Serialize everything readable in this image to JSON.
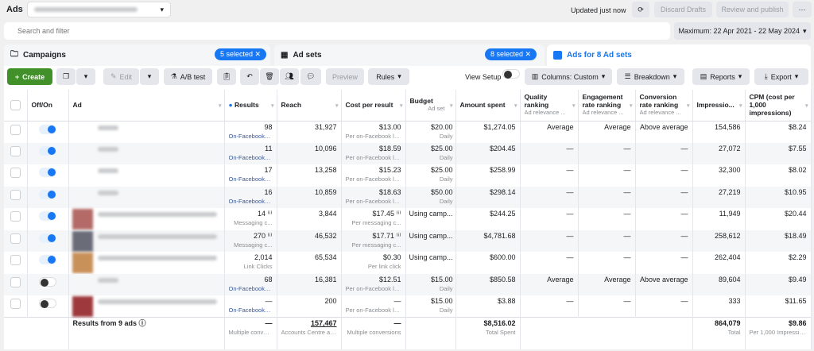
{
  "header": {
    "title": "Ads",
    "updated": "Updated just now",
    "discard": "Discard Drafts",
    "review": "Review and publish",
    "more": "···"
  },
  "search": {
    "placeholder": "Search and filter"
  },
  "date_range": "Maximum: 22 Apr 2021 - 22 May 2024",
  "tabs": [
    {
      "label": "Campaigns",
      "badge": "5 selected"
    },
    {
      "label": "Ad sets",
      "badge": "8 selected"
    },
    {
      "label": "Ads for 8 Ad sets"
    }
  ],
  "toolbar": {
    "create": "Create",
    "edit": "Edit",
    "ab_test": "A/B test",
    "preview": "Preview",
    "rules": "Rules",
    "view_setup": "View Setup",
    "columns": "Columns: Custom",
    "breakdown": "Breakdown",
    "reports": "Reports",
    "export": "Export"
  },
  "columns": [
    {
      "label": "Off/On"
    },
    {
      "label": "Ad"
    },
    {
      "label": "Results"
    },
    {
      "label": "Reach"
    },
    {
      "label": "Cost per result"
    },
    {
      "label": "Budget",
      "sub": "Ad set"
    },
    {
      "label": "Amount spent"
    },
    {
      "label": "Quality ranking",
      "sub": "Ad relevance ..."
    },
    {
      "label": "Engagement rate ranking",
      "sub": "Ad relevance ..."
    },
    {
      "label": "Conversion rate ranking",
      "sub": "Ad relevance ..."
    },
    {
      "label": "Impressio..."
    },
    {
      "label": "CPM (cost per 1,000 impressions)"
    }
  ],
  "rows": [
    {
      "on": true,
      "thumb": false,
      "results": "98",
      "results_sub": "On-Facebook l...",
      "link": true,
      "reach": "31,927",
      "cpr": "$13.00",
      "cpr_sub": "Per on-Facebook lea...",
      "budget": "$20.00",
      "budget_sub": "Daily",
      "spent": "$1,274.05",
      "q": "Average",
      "e": "Average",
      "c": "Above average",
      "imp": "154,586",
      "cpm": "$8.24"
    },
    {
      "on": true,
      "thumb": false,
      "results": "11",
      "results_sub": "On-Facebook l...",
      "link": true,
      "reach": "10,096",
      "cpr": "$18.59",
      "cpr_sub": "Per on-Facebook lea...",
      "budget": "$25.00",
      "budget_sub": "Daily",
      "spent": "$204.45",
      "q": "—",
      "e": "—",
      "c": "—",
      "imp": "27,072",
      "cpm": "$7.55"
    },
    {
      "on": true,
      "thumb": false,
      "results": "17",
      "results_sub": "On-Facebook l...",
      "link": true,
      "reach": "13,258",
      "cpr": "$15.23",
      "cpr_sub": "Per on-Facebook lea...",
      "budget": "$25.00",
      "budget_sub": "Daily",
      "spent": "$258.99",
      "q": "—",
      "e": "—",
      "c": "—",
      "imp": "32,300",
      "cpm": "$8.02"
    },
    {
      "on": true,
      "thumb": false,
      "results": "16",
      "results_sub": "On-Facebook l...",
      "link": true,
      "reach": "10,859",
      "cpr": "$18.63",
      "cpr_sub": "Per on-Facebook lea...",
      "budget": "$50.00",
      "budget_sub": "Daily",
      "spent": "$298.14",
      "q": "—",
      "e": "—",
      "c": "—",
      "imp": "27,219",
      "cpm": "$10.95"
    },
    {
      "on": true,
      "thumb": true,
      "thumb_color": "#b46a66",
      "results": "14 ⁽ⁱ⁾",
      "results_sub": "Messaging c...",
      "link": false,
      "reach": "3,844",
      "cpr": "$17.45 ⁽ⁱ⁾",
      "cpr_sub": "Per messaging c...",
      "budget": "Using camp...",
      "budget_sub": "",
      "spent": "$244.25",
      "q": "—",
      "e": "—",
      "c": "—",
      "imp": "11,949",
      "cpm": "$20.44"
    },
    {
      "on": true,
      "thumb": true,
      "thumb_color": "#6a6c78",
      "results": "270 ⁽ⁱ⁾",
      "results_sub": "Messaging c...",
      "link": false,
      "reach": "46,532",
      "cpr": "$17.71 ⁽ⁱ⁾",
      "cpr_sub": "Per messaging c...",
      "budget": "Using camp...",
      "budget_sub": "",
      "spent": "$4,781.68",
      "q": "—",
      "e": "—",
      "c": "—",
      "imp": "258,612",
      "cpm": "$18.49"
    },
    {
      "on": true,
      "thumb": true,
      "thumb_color": "#c9915a",
      "results": "2,014",
      "results_sub": "Link Clicks",
      "link": false,
      "reach": "65,534",
      "cpr": "$0.30",
      "cpr_sub": "Per link click",
      "budget": "Using camp...",
      "budget_sub": "",
      "spent": "$600.00",
      "q": "—",
      "e": "—",
      "c": "—",
      "imp": "262,404",
      "cpm": "$2.29"
    },
    {
      "on": false,
      "thumb": false,
      "results": "68",
      "results_sub": "On-Facebook l...",
      "link": true,
      "reach": "16,381",
      "cpr": "$12.51",
      "cpr_sub": "Per on-Facebook lea...",
      "budget": "$15.00",
      "budget_sub": "Daily",
      "spent": "$850.58",
      "q": "Average",
      "e": "Average",
      "c": "Above average",
      "imp": "89,604",
      "cpm": "$9.49"
    },
    {
      "on": false,
      "thumb": true,
      "thumb_color": "#9e3a3e",
      "results": "—",
      "results_sub": "On-Facebook l...",
      "link": true,
      "reach": "200",
      "cpr": "—",
      "cpr_sub": "Per on-Facebook lea...",
      "budget": "$15.00",
      "budget_sub": "Daily",
      "spent": "$3.88",
      "q": "—",
      "e": "—",
      "c": "—",
      "imp": "333",
      "cpm": "$11.65"
    }
  ],
  "totals": {
    "label": "Results from 9 ads",
    "results": "—",
    "results_sub": "Multiple conver...",
    "reach": "157,467",
    "reach_sub": "Accounts Centre ac...",
    "cpr": "—",
    "cpr_sub": "Multiple conversions",
    "spent": "$8,516.02",
    "spent_sub": "Total Spent",
    "imp": "864,079",
    "imp_sub": "Total",
    "cpm": "$9.86",
    "cpm_sub": "Per 1,000 Impressio..."
  },
  "colors": {
    "accent": "#1877f2",
    "create": "#42902a"
  }
}
